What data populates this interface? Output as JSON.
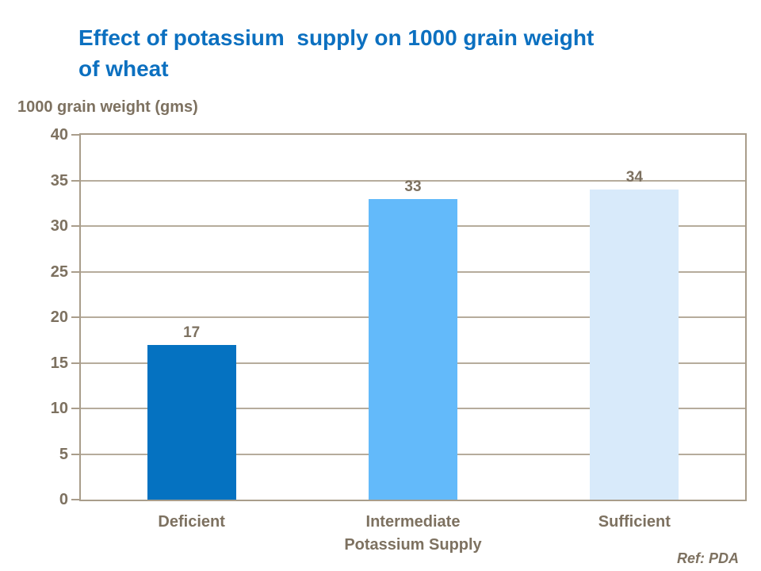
{
  "title": {
    "text": "Effect of potassium  supply on 1000 grain weight\nof wheat"
  },
  "footnote": {
    "text": "Ref: PDA"
  },
  "chart_data": {
    "type": "bar",
    "title": "Effect of potassium supply on 1000 grain weight of wheat",
    "categories": [
      "Deficient",
      "Intermediate",
      "Sufficient"
    ],
    "values": [
      17,
      33,
      34
    ],
    "data_labels": [
      "17",
      "33",
      "34"
    ],
    "xlabel": "Potassium Supply",
    "ylabel": "1000 grain weight (gms)",
    "ylim": [
      0,
      40
    ],
    "ytick_step": 5,
    "ytick_labels": [
      "40",
      "35",
      "30",
      "25",
      "20",
      "15",
      "10",
      "5",
      "0"
    ],
    "grid": true,
    "legend": false,
    "bar_colors": [
      "#0572C1",
      "#63BAFA",
      "#D8EAFA"
    ]
  },
  "colors": {
    "title": "#0c70c0",
    "text": "#7d7160",
    "axis": "#a99d8b",
    "background": "#ffffff"
  }
}
